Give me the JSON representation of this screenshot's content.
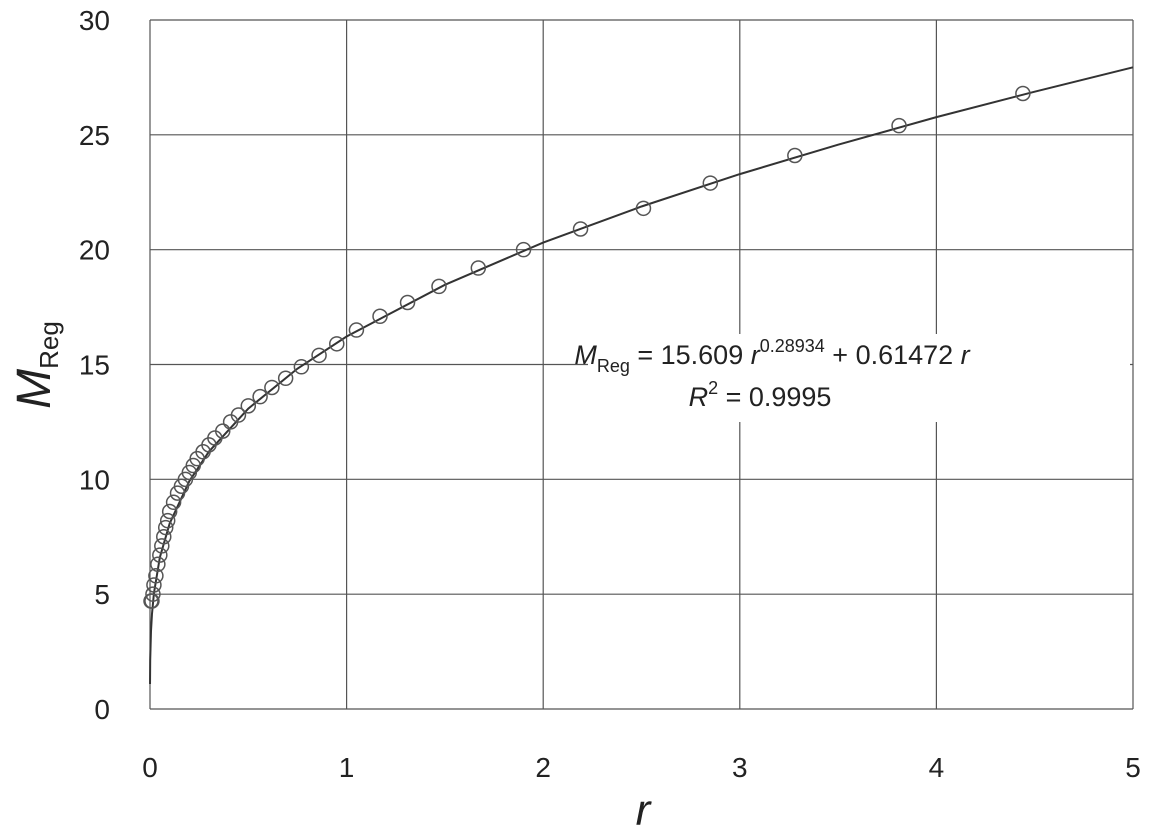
{
  "chart_data": {
    "type": "scatter",
    "xlabel": "r",
    "ylabel": {
      "main": "M",
      "sub": "Reg"
    },
    "xlim": [
      0,
      5
    ],
    "xticks": [
      0,
      1,
      2,
      3,
      4,
      5
    ],
    "ylim": [
      0,
      30
    ],
    "yticks": [
      0,
      5,
      10,
      15,
      20,
      25,
      30
    ],
    "grid": true,
    "points": {
      "color": "#555555",
      "x": [
        4.44,
        3.81,
        3.28,
        2.85,
        2.51,
        2.19,
        1.9,
        1.67,
        1.47,
        1.31,
        1.17,
        1.05,
        0.95,
        0.86,
        0.77,
        0.69,
        0.62,
        0.56,
        0.5,
        0.45,
        0.41,
        0.37,
        0.33,
        0.3,
        0.27,
        0.24,
        0.22,
        0.2,
        0.18,
        0.16,
        0.14,
        0.12,
        0.1,
        0.09,
        0.08,
        0.07,
        0.06,
        0.05,
        0.04,
        0.03,
        0.02,
        0.015,
        0.01,
        0.005
      ],
      "y": [
        26.8,
        25.4,
        24.1,
        22.9,
        21.8,
        20.9,
        20.0,
        19.2,
        18.4,
        17.7,
        17.1,
        16.5,
        15.9,
        15.4,
        14.9,
        14.4,
        14.0,
        13.6,
        13.2,
        12.8,
        12.5,
        12.1,
        11.8,
        11.5,
        11.2,
        10.9,
        10.6,
        10.3,
        10.0,
        9.7,
        9.4,
        9.0,
        8.6,
        8.2,
        7.9,
        7.5,
        7.1,
        6.7,
        6.3,
        5.8,
        5.4,
        5.0,
        4.7,
        4.7
      ]
    },
    "fit": {
      "color": "#333333",
      "x": [
        0.0001,
        0.001,
        0.005,
        0.01,
        0.02,
        0.05,
        0.1,
        0.2,
        0.3,
        0.5,
        0.75,
        1,
        1.5,
        2,
        2.5,
        3,
        3.5,
        4,
        4.5,
        5
      ],
      "y": [
        1.09,
        2.11,
        3.38,
        4.13,
        5.04,
        6.6,
        8.08,
        9.92,
        11.21,
        13.08,
        14.82,
        16.22,
        18.47,
        20.31,
        21.88,
        23.29,
        24.57,
        25.77,
        26.88,
        27.94
      ]
    },
    "annotation": {
      "line1": {
        "m": "M",
        "sub": "Reg",
        "eq": " = 15.609 ",
        "r1": "r",
        "exp": "0.28934",
        "plus": " + 0.61472 ",
        "r2": "r"
      },
      "line2": {
        "r": "R",
        "sup": "2",
        "rest": " = 0.9995"
      }
    }
  }
}
